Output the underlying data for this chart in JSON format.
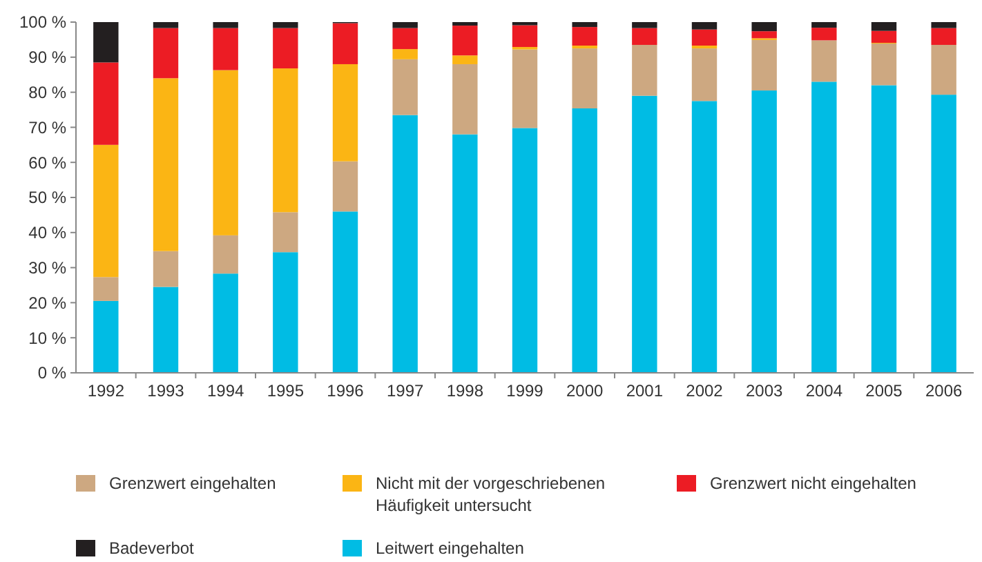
{
  "chart_data": {
    "type": "bar",
    "stacked": true,
    "categories": [
      "1992",
      "1993",
      "1994",
      "1995",
      "1996",
      "1997",
      "1998",
      "1999",
      "2000",
      "2001",
      "2002",
      "2003",
      "2004",
      "2005",
      "2006"
    ],
    "series": [
      {
        "name": "Leitwert eingehalten",
        "color": "#00bce4",
        "values": [
          20.5,
          24.5,
          28.3,
          34.4,
          46,
          73.5,
          68,
          69.8,
          75.4,
          79,
          77.5,
          80.5,
          83,
          82,
          79.3
        ]
      },
      {
        "name": "Grenzwert eingehalten",
        "color": "#cda881",
        "values": [
          6.8,
          10.2,
          10.9,
          11.4,
          14.3,
          15.9,
          20,
          22.4,
          17.1,
          14.5,
          15,
          14.4,
          11.8,
          11.9,
          14.2
        ]
      },
      {
        "name": "Nicht mit der vorgeschriebenen Häufigkeit untersucht",
        "color": "#fbb514",
        "values": [
          37.7,
          49.3,
          47.1,
          41,
          27.7,
          2.9,
          2.5,
          0.7,
          0.8,
          0,
          0.8,
          0.5,
          0,
          0.2,
          0
        ]
      },
      {
        "name": "Grenzwert nicht eingehalten",
        "color": "#ec1c24",
        "values": [
          23.5,
          14.3,
          12,
          11.5,
          11.7,
          6,
          8.5,
          6.2,
          5.3,
          4.8,
          4.6,
          2,
          3.6,
          3.4,
          4.8
        ]
      },
      {
        "name": "Badeverbot",
        "color": "#231f20",
        "values": [
          11.5,
          1.7,
          1.7,
          1.7,
          0.3,
          1.7,
          1,
          0.9,
          1.4,
          1.7,
          2.1,
          2.6,
          1.6,
          2.5,
          1.7
        ]
      }
    ],
    "ylim": [
      0,
      100
    ],
    "yticks": [
      {
        "value": 0,
        "label": "0 %"
      },
      {
        "value": 10,
        "label": "10 %"
      },
      {
        "value": 20,
        "label": "20 %"
      },
      {
        "value": 30,
        "label": "30 %"
      },
      {
        "value": 40,
        "label": "40 %"
      },
      {
        "value": 50,
        "label": "50 %"
      },
      {
        "value": 60,
        "label": "60 %"
      },
      {
        "value": 70,
        "label": "70 %"
      },
      {
        "value": 80,
        "label": "80 %"
      },
      {
        "value": 90,
        "label": "90 %"
      },
      {
        "value": 100,
        "label": "100 %"
      }
    ],
    "grid": false,
    "legend": "bottom"
  }
}
